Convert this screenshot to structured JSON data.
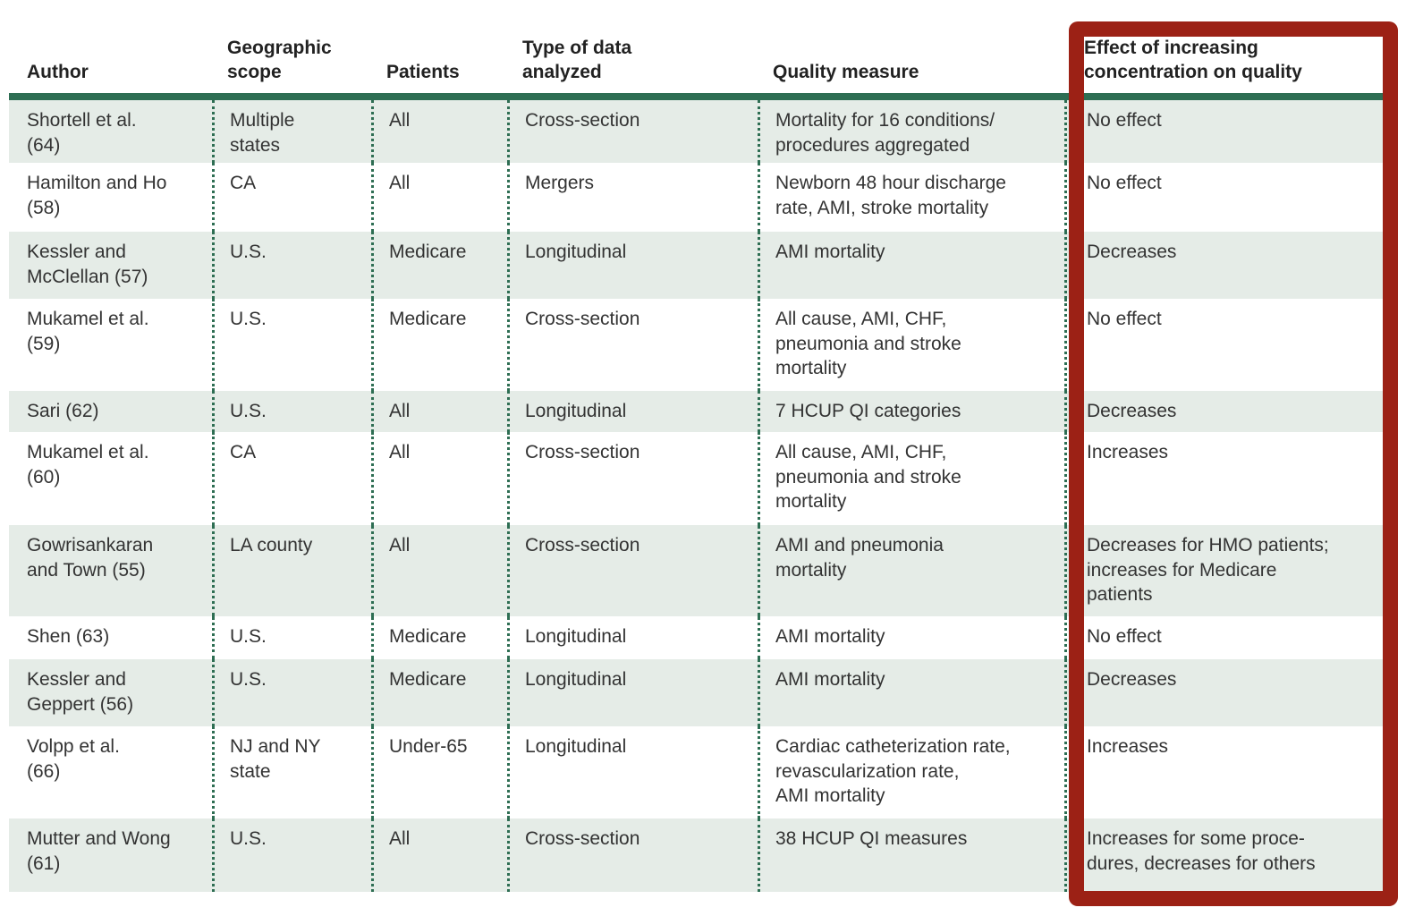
{
  "colors": {
    "header_rule_green": "#2e6e53",
    "dotted_separator_green": "#2e6e53",
    "row_stripe_green": "#e5ece7",
    "highlight_box_red": "#9c2115",
    "text": "#333333"
  },
  "annotation": {
    "type": "highlight-box",
    "highlighted_column": "Effect of increasing concentration on quality"
  },
  "table": {
    "columns": [
      {
        "label": "Author"
      },
      {
        "label": "Geographic\nscope"
      },
      {
        "label": "Patients"
      },
      {
        "label": "Type of data\nanalyzed"
      },
      {
        "label": "Quality measure"
      },
      {
        "label": "Effect of increasing\nconcentration on quality"
      }
    ],
    "rows": [
      {
        "author": "Shortell et al.\n(64)",
        "geographic_scope": "Multiple\nstates",
        "patients": "All",
        "data_type": "Cross-section",
        "quality_measure": "Mortality for 16 conditions/\nprocedures aggregated",
        "effect": "No effect"
      },
      {
        "author": "Hamilton and Ho\n(58)",
        "geographic_scope": "CA",
        "patients": "All",
        "data_type": "Mergers",
        "quality_measure": "Newborn 48 hour discharge\nrate, AMI, stroke mortality",
        "effect": "No effect"
      },
      {
        "author": "Kessler and\nMcClellan (57)",
        "geographic_scope": "U.S.",
        "patients": "Medicare",
        "data_type": "Longitudinal",
        "quality_measure": "AMI mortality",
        "effect": "Decreases"
      },
      {
        "author": "Mukamel et al.\n(59)",
        "geographic_scope": "U.S.",
        "patients": "Medicare",
        "data_type": "Cross-section",
        "quality_measure": "All cause, AMI, CHF,\npneumonia and stroke\nmortality",
        "effect": "No effect"
      },
      {
        "author": "Sari (62)",
        "geographic_scope": "U.S.",
        "patients": "All",
        "data_type": "Longitudinal",
        "quality_measure": "7 HCUP QI categories",
        "effect": "Decreases"
      },
      {
        "author": "Mukamel et al.\n(60)",
        "geographic_scope": "CA",
        "patients": "All",
        "data_type": "Cross-section",
        "quality_measure": "All cause, AMI, CHF,\npneumonia and stroke\nmortality",
        "effect": "Increases"
      },
      {
        "author": "Gowrisankaran\nand Town (55)",
        "geographic_scope": "LA county",
        "patients": "All",
        "data_type": "Cross-section",
        "quality_measure": "AMI and pneumonia\nmortality",
        "effect": "Decreases for HMO patients;\nincreases for Medicare\npatients"
      },
      {
        "author": "Shen (63)",
        "geographic_scope": "U.S.",
        "patients": "Medicare",
        "data_type": "Longitudinal",
        "quality_measure": "AMI mortality",
        "effect": "No effect"
      },
      {
        "author": "Kessler and\nGeppert (56)",
        "geographic_scope": "U.S.",
        "patients": "Medicare",
        "data_type": "Longitudinal",
        "quality_measure": "AMI mortality",
        "effect": "Decreases"
      },
      {
        "author": "Volpp et al.\n(66)",
        "geographic_scope": "NJ and NY\nstate",
        "patients": "Under-65",
        "data_type": "Longitudinal",
        "quality_measure": "Cardiac catheterization rate,\nrevascularization rate,\nAMI mortality",
        "effect": "Increases"
      },
      {
        "author": "Mutter and Wong\n(61)",
        "geographic_scope": "U.S.",
        "patients": "All",
        "data_type": "Cross-section",
        "quality_measure": "38 HCUP QI measures",
        "effect": "Increases for some proce-\ndures, decreases for others"
      }
    ]
  }
}
